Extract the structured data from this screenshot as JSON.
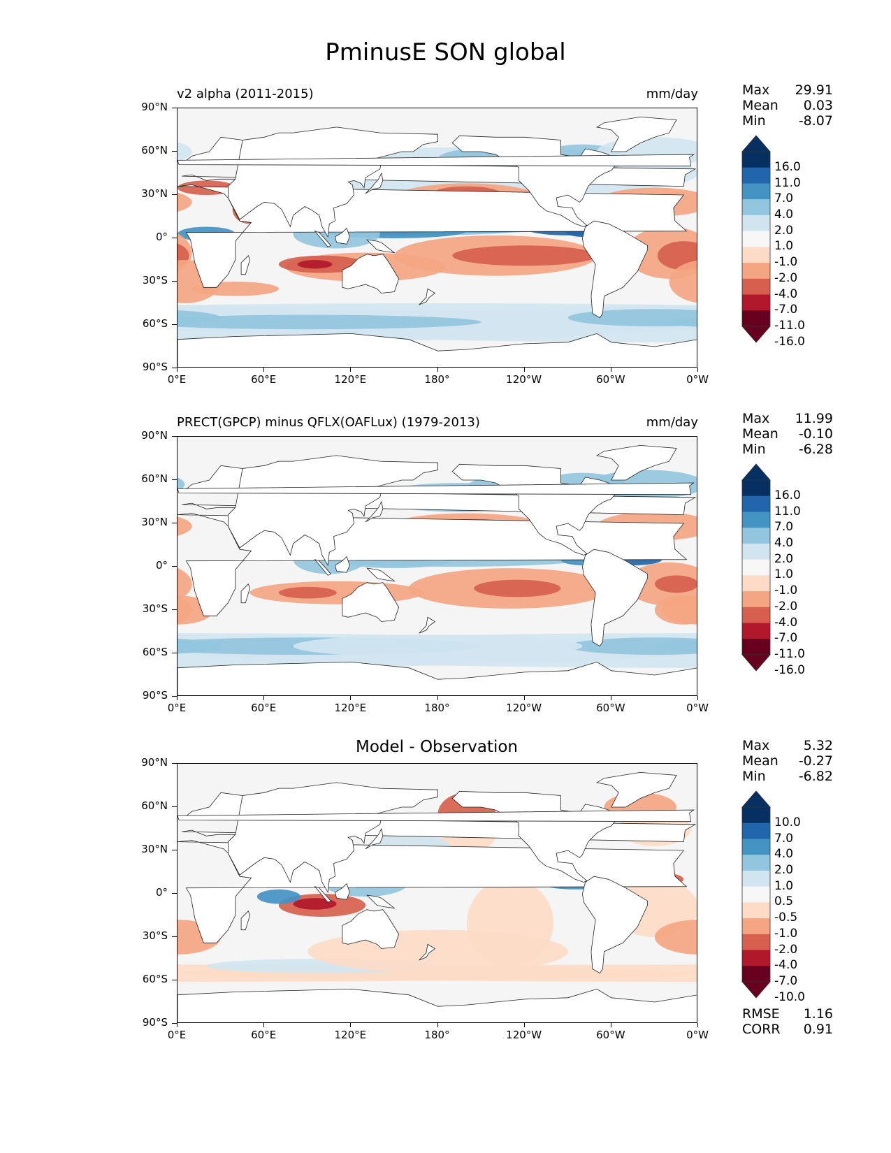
{
  "figure_title": "PminusE SON global",
  "axes": {
    "lat_labels": [
      "90°N",
      "60°N",
      "30°N",
      "0°",
      "30°S",
      "60°S",
      "90°S"
    ],
    "lon_labels": [
      "0°E",
      "60°E",
      "120°E",
      "180°",
      "120°W",
      "60°W",
      "0°W"
    ]
  },
  "panels": [
    {
      "title_left": "v2 alpha (2011-2015)",
      "title_right": "mm/day",
      "title_center": "",
      "stats": [
        {
          "label": "Max",
          "value": "29.91"
        },
        {
          "label": "Mean",
          "value": "0.03"
        },
        {
          "label": "Min",
          "value": "-8.07"
        }
      ],
      "colorbar_levels": [
        "16.0",
        "11.0",
        "7.0",
        "4.0",
        "2.0",
        "1.0",
        "-1.0",
        "-2.0",
        "-4.0",
        "-7.0",
        "-11.0",
        "-16.0"
      ]
    },
    {
      "title_left": "PRECT(GPCP) minus QFLX(OAFLux) (1979-2013)",
      "title_right": "mm/day",
      "title_center": "",
      "stats": [
        {
          "label": "Max",
          "value": "11.99"
        },
        {
          "label": "Mean",
          "value": "-0.10"
        },
        {
          "label": "Min",
          "value": "-6.28"
        }
      ],
      "colorbar_levels": [
        "16.0",
        "11.0",
        "7.0",
        "4.0",
        "2.0",
        "1.0",
        "-1.0",
        "-2.0",
        "-4.0",
        "-7.0",
        "-11.0",
        "-16.0"
      ]
    },
    {
      "title_left": "",
      "title_right": "",
      "title_center": "Model - Observation",
      "stats": [
        {
          "label": "Max",
          "value": "5.32"
        },
        {
          "label": "Mean",
          "value": "-0.27"
        },
        {
          "label": "Min",
          "value": "-6.82"
        }
      ],
      "colorbar_levels": [
        "10.0",
        "7.0",
        "4.0",
        "2.0",
        "1.0",
        "0.5",
        "-0.5",
        "-1.0",
        "-2.0",
        "-4.0",
        "-7.0",
        "-10.0"
      ],
      "rmse": {
        "label": "RMSE",
        "value": "1.16"
      },
      "corr": {
        "label": "CORR",
        "value": "0.91"
      }
    }
  ],
  "colors": {
    "colorbar": [
      "#053061",
      "#2166ac",
      "#4393c3",
      "#92c5de",
      "#d1e5f0",
      "#f7f7f7",
      "#fddbc7",
      "#f4a582",
      "#d6604d",
      "#b2182b",
      "#67001f"
    ],
    "ocean_neutral": "#f5f5f5",
    "land": "#ffffff"
  }
}
